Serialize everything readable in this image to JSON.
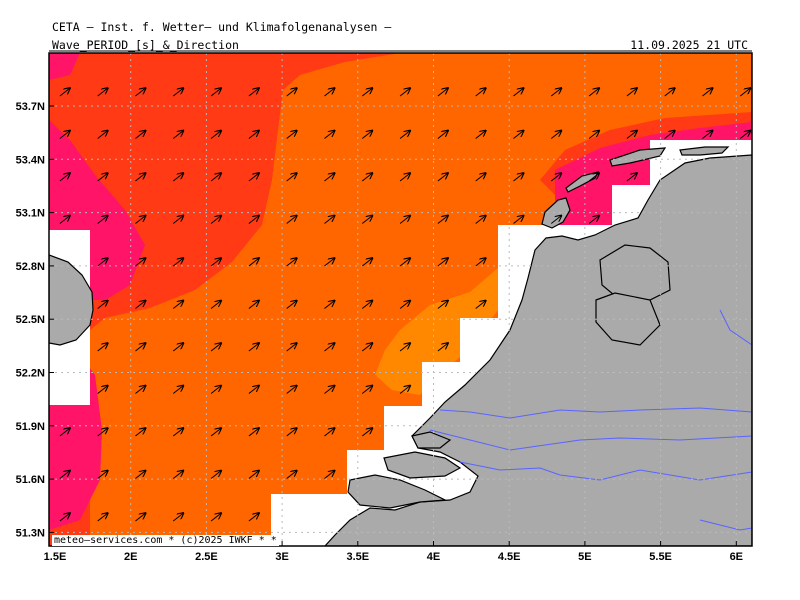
{
  "header": {
    "institute": "CETA — Inst. f. Wetter— und Klimafolgenanalysen —",
    "parameter": "Wave_PERIOD_[s]_&_Direction",
    "valid_time": "11.09.2025 21 UTC"
  },
  "map": {
    "lon_labels": [
      "1.5E",
      "2E",
      "2.5E",
      "3E",
      "3.5E",
      "4E",
      "4.5E",
      "5E",
      "5.5E",
      "6E"
    ],
    "lat_labels": [
      "53.7N",
      "53.4N",
      "53.1N",
      "52.8N",
      "52.5N",
      "52.2N",
      "51.9N",
      "51.6N",
      "51.3N"
    ],
    "colors": {
      "red": "#ff3a14",
      "orange": "#ff6600",
      "light_orange": "#ff8800",
      "magenta": "#ff1468",
      "land": "#aaaaaa",
      "coast": "#000000",
      "rivers": "#5a64ff",
      "grid": "#bbbbbb"
    },
    "wave_direction": "northeast",
    "credit": "meteo—services.com * (c)2025 IWKF * *"
  }
}
